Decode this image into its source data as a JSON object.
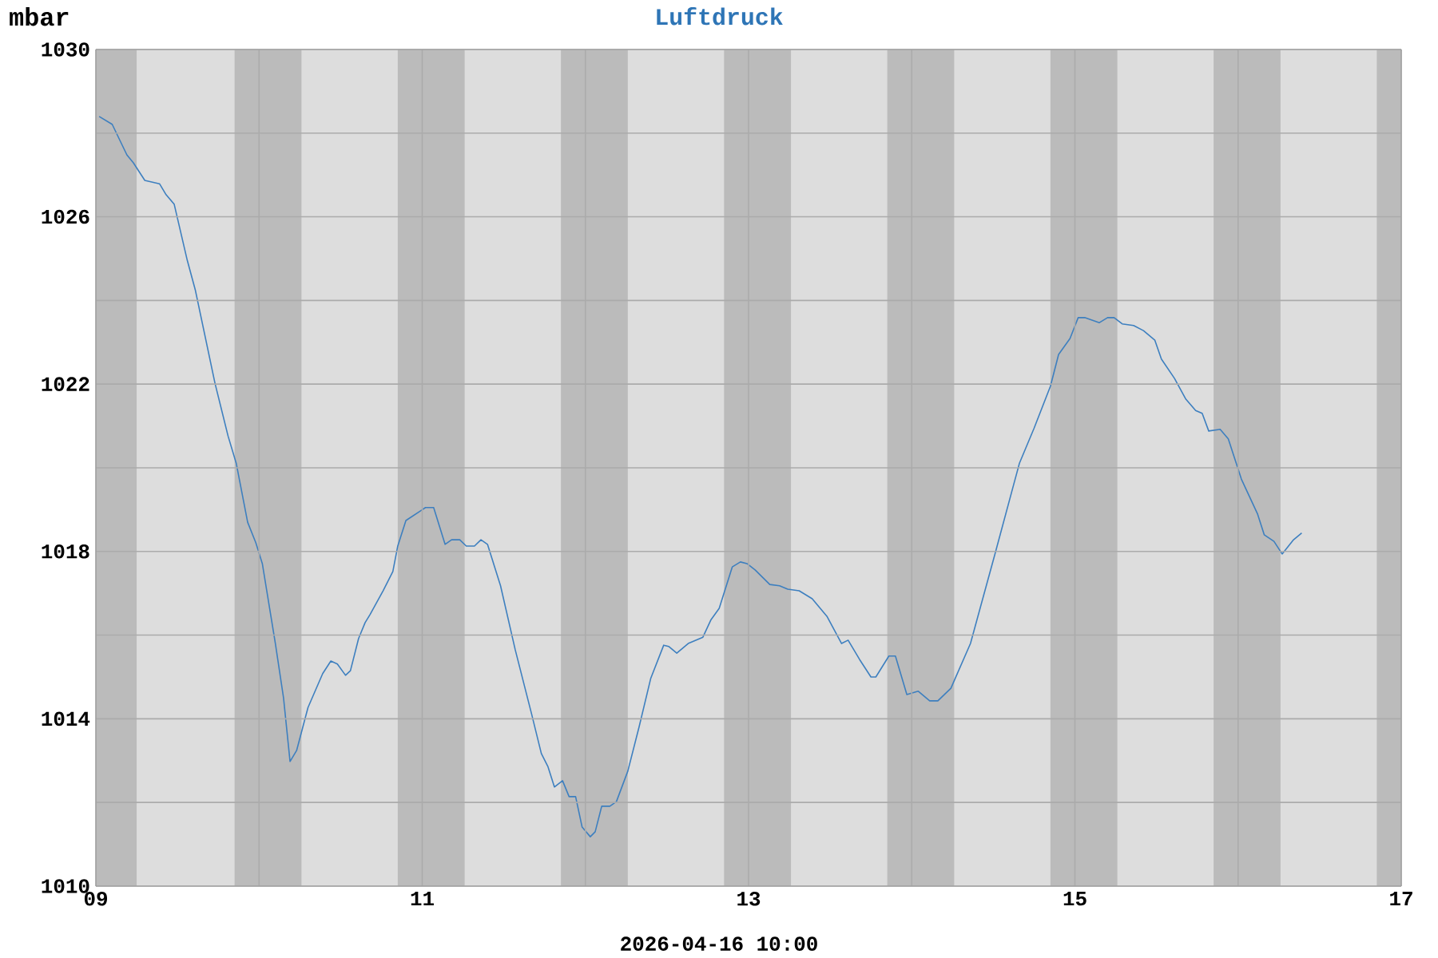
{
  "chart_data": {
    "type": "line",
    "title": "Luftdruck",
    "ylabel": "mbar",
    "annotations": [
      "2026-04-16 10:00"
    ],
    "x": [
      9.02,
      9.1,
      9.19,
      9.23,
      9.3,
      9.39,
      9.43,
      9.48,
      9.56,
      9.61,
      9.73,
      9.81,
      9.86,
      9.93,
      9.98,
      10.02,
      10.1,
      10.15,
      10.19,
      10.23,
      10.3,
      10.39,
      10.44,
      10.48,
      10.53,
      10.56,
      10.61,
      10.65,
      10.68,
      10.76,
      10.82,
      10.85,
      10.9,
      10.99,
      11.02,
      11.07,
      11.14,
      11.18,
      11.23,
      11.27,
      11.32,
      11.36,
      11.4,
      11.48,
      11.57,
      11.67,
      11.73,
      11.77,
      11.81,
      11.86,
      11.9,
      11.94,
      11.98,
      12.03,
      12.06,
      12.1,
      12.15,
      12.19,
      12.26,
      12.33,
      12.4,
      12.48,
      12.51,
      12.56,
      12.63,
      12.72,
      12.77,
      12.82,
      12.9,
      12.95,
      12.99,
      13.04,
      13.13,
      13.19,
      13.24,
      13.31,
      13.39,
      13.48,
      13.57,
      13.61,
      13.68,
      13.75,
      13.78,
      13.86,
      13.9,
      13.97,
      14.04,
      14.11,
      14.16,
      14.24,
      14.36,
      14.51,
      14.66,
      14.75,
      14.85,
      14.9,
      14.97,
      15.02,
      15.06,
      15.15,
      15.2,
      15.24,
      15.29,
      15.36,
      15.42,
      15.49,
      15.53,
      15.61,
      15.68,
      15.74,
      15.78,
      15.82,
      15.89,
      15.94,
      16.02,
      16.12,
      16.16,
      16.22,
      16.27,
      16.34,
      16.39
    ],
    "series": [
      {
        "color": "#3d7fbf",
        "values": [
          1028.4,
          1028.21,
          1027.48,
          1027.29,
          1026.87,
          1026.79,
          1026.53,
          1026.3,
          1024.96,
          1024.24,
          1022.02,
          1020.76,
          1020.11,
          1018.7,
          1018.21,
          1017.71,
          1015.8,
          1014.5,
          1012.98,
          1013.24,
          1014.27,
          1015.08,
          1015.38,
          1015.31,
          1015.04,
          1015.15,
          1015.92,
          1016.3,
          1016.49,
          1017.06,
          1017.52,
          1018.13,
          1018.74,
          1018.97,
          1019.05,
          1019.05,
          1018.17,
          1018.28,
          1018.28,
          1018.13,
          1018.13,
          1018.28,
          1018.17,
          1017.18,
          1015.65,
          1014.12,
          1013.17,
          1012.86,
          1012.37,
          1012.52,
          1012.14,
          1012.14,
          1011.41,
          1011.18,
          1011.3,
          1011.91,
          1011.91,
          1012.02,
          1012.75,
          1013.82,
          1014.96,
          1015.76,
          1015.73,
          1015.57,
          1015.8,
          1015.95,
          1016.37,
          1016.64,
          1017.63,
          1017.75,
          1017.71,
          1017.56,
          1017.21,
          1017.18,
          1017.1,
          1017.06,
          1016.87,
          1016.45,
          1015.8,
          1015.88,
          1015.42,
          1015.0,
          1015.0,
          1015.5,
          1015.5,
          1014.58,
          1014.66,
          1014.43,
          1014.43,
          1014.73,
          1015.8,
          1017.94,
          1020.11,
          1020.95,
          1021.95,
          1022.71,
          1023.09,
          1023.59,
          1023.59,
          1023.47,
          1023.59,
          1023.59,
          1023.44,
          1023.4,
          1023.28,
          1023.05,
          1022.6,
          1022.14,
          1021.64,
          1021.37,
          1021.3,
          1020.88,
          1020.92,
          1020.69,
          1019.73,
          1018.89,
          1018.4,
          1018.24,
          1017.94,
          1018.28,
          1018.44
        ]
      }
    ],
    "xlim": [
      9,
      17
    ],
    "ylim": [
      1010,
      1030
    ],
    "xticks": [
      {
        "value": 9,
        "label": "09"
      },
      {
        "value": 10,
        "label": null
      },
      {
        "value": 11,
        "label": "11"
      },
      {
        "value": 12,
        "label": null
      },
      {
        "value": 13,
        "label": "13"
      },
      {
        "value": 14,
        "label": null
      },
      {
        "value": 15,
        "label": "15"
      },
      {
        "value": 16,
        "label": null
      },
      {
        "value": 17,
        "label": "17"
      }
    ],
    "yticks": [
      1010,
      {
        "value": 1012,
        "label": null
      },
      1014,
      {
        "value": 1016,
        "label": null
      },
      1018,
      {
        "value": 1020,
        "label": null
      },
      1022,
      {
        "value": 1024,
        "label": null
      },
      1026,
      {
        "value": 1028,
        "label": null
      },
      1030
    ],
    "grid": true,
    "bands": [
      {
        "axis": "x",
        "from": 9,
        "to": 9.25,
        "color": "#bbbbbb"
      },
      {
        "axis": "x",
        "from": 9.85,
        "to": 10.26,
        "color": "#bbbbbb"
      },
      {
        "axis": "x",
        "from": 10.85,
        "to": 11.26,
        "color": "#bbbbbb"
      },
      {
        "axis": "x",
        "from": 11.85,
        "to": 12.26,
        "color": "#bbbbbb"
      },
      {
        "axis": "x",
        "from": 12.85,
        "to": 13.26,
        "color": "#bbbbbb"
      },
      {
        "axis": "x",
        "from": 13.85,
        "to": 14.26,
        "color": "#bbbbbb"
      },
      {
        "axis": "x",
        "from": 14.85,
        "to": 15.26,
        "color": "#bbbbbb"
      },
      {
        "axis": "x",
        "from": 15.85,
        "to": 16.26,
        "color": "#bbbbbb"
      },
      {
        "axis": "x",
        "from": 16.85,
        "to": 17,
        "color": "#bbbbbb"
      }
    ]
  }
}
